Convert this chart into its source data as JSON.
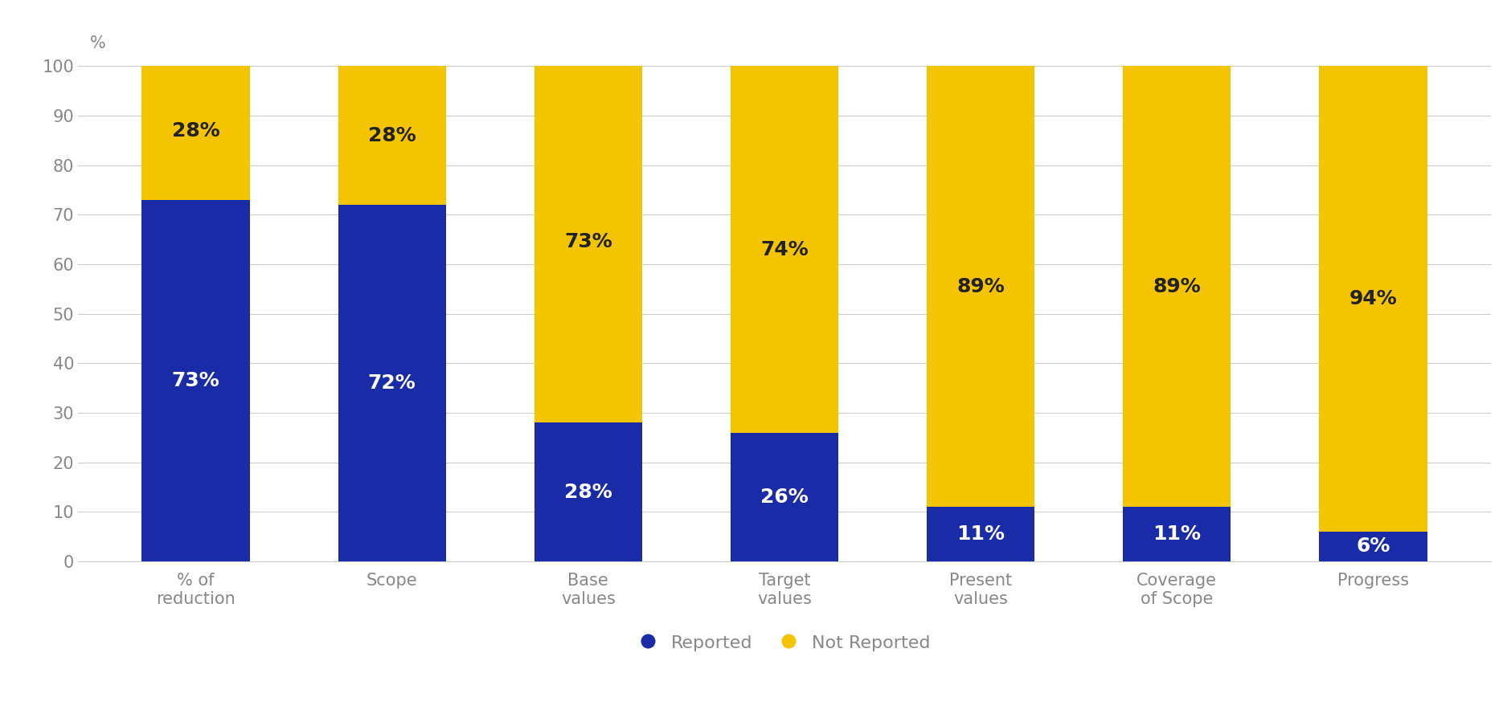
{
  "categories": [
    "% of\nreduction",
    "Scope",
    "Base\nvalues",
    "Target\nvalues",
    "Present\nvalues",
    "Coverage\nof Scope",
    "Progress"
  ],
  "reported": [
    73,
    72,
    28,
    26,
    11,
    11,
    6
  ],
  "not_reported": [
    28,
    28,
    73,
    74,
    89,
    89,
    94
  ],
  "reported_color": "#1a2ba8",
  "not_reported_color": "#f5c400",
  "background_color": "#ffffff",
  "text_color_white": "#ffffff",
  "text_color_dark": "#222222",
  "bar_label_fontsize": 18,
  "tick_fontsize": 15,
  "legend_fontsize": 16,
  "ylabel": "%",
  "ylim": [
    0,
    100
  ],
  "yticks": [
    0,
    10,
    20,
    30,
    40,
    50,
    60,
    70,
    80,
    90,
    100
  ],
  "legend_labels": [
    "Reported",
    "Not Reported"
  ],
  "bar_width": 0.55
}
